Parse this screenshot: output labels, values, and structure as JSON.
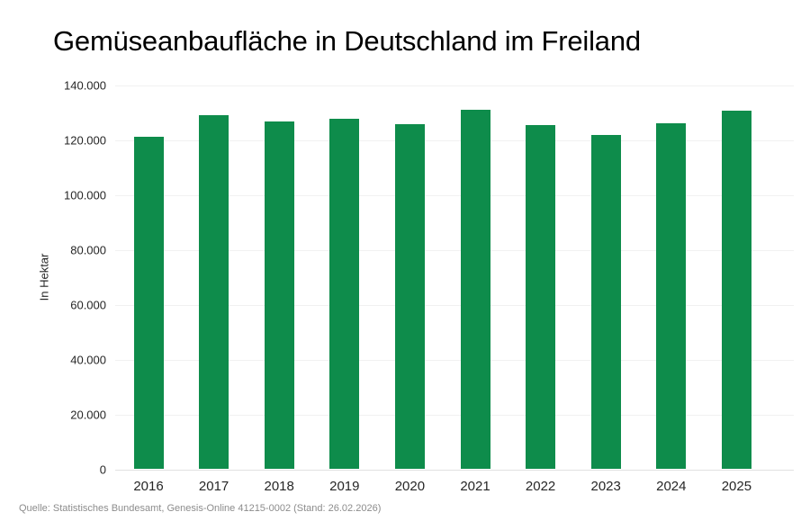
{
  "chart_data": {
    "type": "bar",
    "title": "Gemüseanbaufläche in Deutschland im Freiland",
    "ylabel": "In Hektar",
    "xlabel": "",
    "categories": [
      "2016",
      "2017",
      "2018",
      "2019",
      "2020",
      "2021",
      "2022",
      "2023",
      "2024",
      "2025"
    ],
    "values": [
      121000,
      128900,
      126600,
      127400,
      125500,
      130700,
      125300,
      121700,
      125900,
      130600
    ],
    "ylim": [
      0,
      140000
    ],
    "ytick_values": [
      0,
      20000,
      40000,
      60000,
      80000,
      100000,
      120000,
      140000
    ],
    "ytick_labels": [
      "0",
      "20.000",
      "40.000",
      "60.000",
      "80.000",
      "100.000",
      "120.000",
      "140.000"
    ],
    "grid": true,
    "legend": "none",
    "bar_color": "#0e8c4b",
    "source": "Quelle: Statistisches Bundesamt, Genesis-Online 41215-0002 (Stand: 26.02.2026)"
  },
  "colors": {
    "bar": "#0e8c4b",
    "grid": "#f1f1f1",
    "baseline": "#e0e0e0",
    "text": "#262626",
    "muted": "#8c8c8c"
  }
}
